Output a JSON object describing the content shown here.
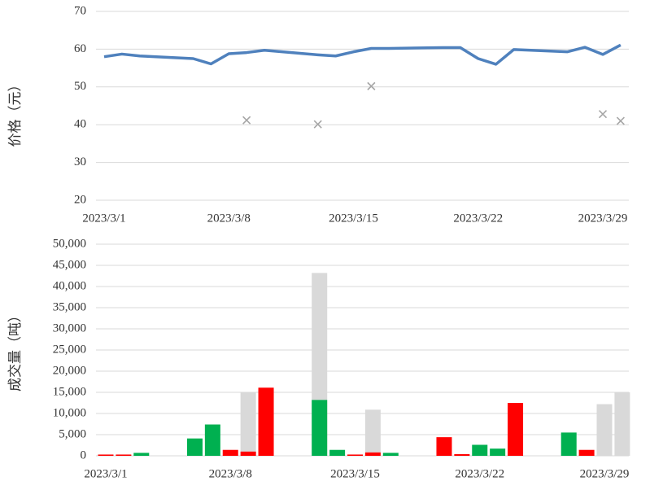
{
  "chart_data": [
    {
      "type": "line",
      "y_label": "价格（元）",
      "x": [
        "2023/3/1",
        "2023/3/2",
        "2023/3/3",
        "2023/3/6",
        "2023/3/7",
        "2023/3/8",
        "2023/3/9",
        "2023/3/10",
        "2023/3/13",
        "2023/3/14",
        "2023/3/15",
        "2023/3/16",
        "2023/3/17",
        "2023/3/20",
        "2023/3/21",
        "2023/3/22",
        "2023/3/23",
        "2023/3/24",
        "2023/3/27",
        "2023/3/28",
        "2023/3/29",
        "2023/3/30"
      ],
      "values": [
        58.0,
        58.7,
        58.2,
        57.5,
        56.1,
        58.8,
        59.1,
        59.7,
        58.5,
        58.2,
        59.3,
        60.2,
        60.2,
        60.4,
        60.4,
        57.5,
        56.0,
        59.9,
        59.3,
        60.5,
        58.6,
        61.1
      ],
      "color": "#4f81bd",
      "markers": {
        "x": [
          "2023/3/9",
          "2023/3/13",
          "2023/3/16",
          "2023/3/29",
          "2023/3/30"
        ],
        "values": [
          41.2,
          40.1,
          50.2,
          42.8,
          41.0
        ],
        "color": "#a6a6a6"
      },
      "ylim": [
        20,
        70
      ],
      "yticks": [
        20,
        30,
        40,
        50,
        60,
        70
      ],
      "xticks": [
        "2023/3/1",
        "2023/3/8",
        "2023/3/15",
        "2023/3/22",
        "2023/3/29"
      ],
      "grid": true
    },
    {
      "type": "bar",
      "y_label": "成交量（吨）",
      "x": [
        "2023/3/1",
        "2023/3/2",
        "2023/3/3",
        "2023/3/6",
        "2023/3/7",
        "2023/3/8",
        "2023/3/9",
        "2023/3/10",
        "2023/3/13",
        "2023/3/14",
        "2023/3/15",
        "2023/3/16",
        "2023/3/17",
        "2023/3/20",
        "2023/3/21",
        "2023/3/22",
        "2023/3/23",
        "2023/3/24",
        "2023/3/27",
        "2023/3/28",
        "2023/3/29",
        "2023/3/30"
      ],
      "series": [
        {
          "color": "#d9d9d9",
          "values": [
            null,
            null,
            null,
            null,
            null,
            null,
            15000,
            null,
            43200,
            null,
            null,
            10900,
            null,
            null,
            null,
            null,
            null,
            null,
            null,
            null,
            12200,
            15000
          ]
        },
        {
          "color": "#00b050",
          "values": [
            null,
            null,
            700,
            4100,
            7400,
            null,
            null,
            null,
            13200,
            1400,
            null,
            null,
            700,
            null,
            null,
            2600,
            1700,
            null,
            5500,
            null,
            null,
            null
          ]
        },
        {
          "color": "#ff0000",
          "values": [
            300,
            300,
            null,
            null,
            null,
            1400,
            1000,
            16100,
            null,
            null,
            300,
            800,
            null,
            4400,
            400,
            null,
            null,
            12500,
            null,
            1400,
            null,
            null
          ]
        }
      ],
      "ylim": [
        0,
        50000
      ],
      "yticks": [
        0,
        {
          "value": 5000,
          "label": "5,000"
        },
        {
          "value": 10000,
          "label": "10,000"
        },
        {
          "value": 15000,
          "label": "15,000"
        },
        {
          "value": 20000,
          "label": "20,000"
        },
        {
          "value": 25000,
          "label": "25,000"
        },
        {
          "value": 30000,
          "label": "30,000"
        },
        {
          "value": 35000,
          "label": "35,000"
        },
        {
          "value": 40000,
          "label": "40,000"
        },
        {
          "value": 45000,
          "label": "45,000"
        },
        {
          "value": 50000,
          "label": "50,000"
        }
      ],
      "xticks": [
        "2023/3/1",
        "2023/3/8",
        "2023/3/15",
        "2023/3/22",
        "2023/3/29"
      ],
      "grid": true
    }
  ]
}
